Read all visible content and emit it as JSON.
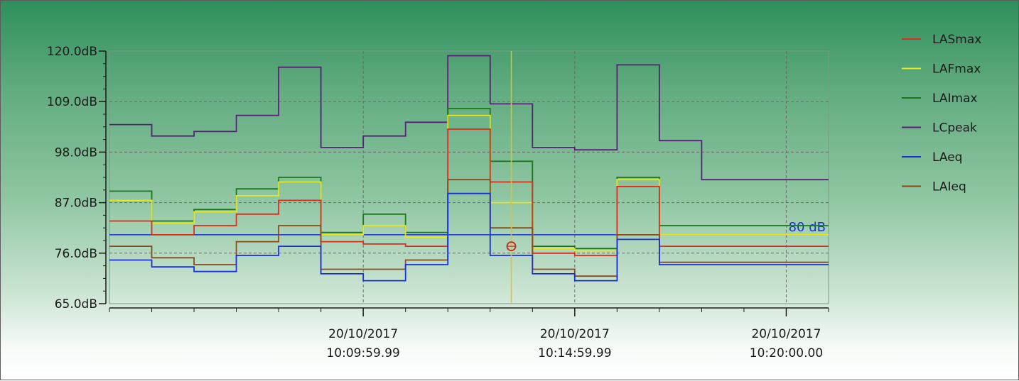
{
  "chart_data": {
    "type": "line",
    "step": true,
    "title": "",
    "xlabel": "",
    "ylabel": "",
    "ylim": [
      65,
      120
    ],
    "y_ticks": [
      {
        "value": 65,
        "label": "65.0dB"
      },
      {
        "value": 76,
        "label": "76.0dB"
      },
      {
        "value": 87,
        "label": "87.0dB"
      },
      {
        "value": 98,
        "label": "98.0dB"
      },
      {
        "value": 109,
        "label": "109.0dB"
      },
      {
        "value": 120,
        "label": "120.0dB"
      }
    ],
    "x_range": [
      "10:04:00",
      "10:21:00"
    ],
    "x_tick_labels": [
      {
        "date": "20/10/2017",
        "time": "10:09:59.99",
        "at": "10:10:00"
      },
      {
        "date": "20/10/2017",
        "time": "10:14:59.99",
        "at": "10:15:00"
      },
      {
        "date": "20/10/2017",
        "time": "10:20:00.00",
        "at": "10:20:00"
      }
    ],
    "x_minor_ticks": [
      "10:05:00",
      "10:06:00",
      "10:07:00",
      "10:08:00",
      "10:09:00",
      "10:11:00",
      "10:12:00",
      "10:13:00",
      "10:14:00",
      "10:16:00",
      "10:17:00",
      "10:18:00",
      "10:19:00",
      "10:21:00"
    ],
    "interval_starts": [
      "10:04:00",
      "10:05:00",
      "10:06:00",
      "10:07:00",
      "10:08:00",
      "10:09:00",
      "10:10:00",
      "10:11:00",
      "10:12:00",
      "10:13:00",
      "10:14:00",
      "10:15:00",
      "10:16:00",
      "10:17:00",
      "10:18:00",
      "10:19:00",
      "10:20:00"
    ],
    "interval_end": "10:21:00",
    "series": [
      {
        "name": "LCpeak",
        "color": "#5b1f7a",
        "values": [
          104,
          101.5,
          102.5,
          106,
          116.5,
          99,
          101.5,
          104.5,
          119,
          108.5,
          99,
          98.5,
          117,
          100.5,
          92,
          92,
          92
        ]
      },
      {
        "name": "LAImax",
        "color": "#1a7a1a",
        "values": [
          89.5,
          83,
          85.5,
          90,
          92.5,
          80.5,
          84.5,
          80.5,
          107.5,
          96,
          77.5,
          77,
          92.5,
          82,
          82,
          82,
          82
        ]
      },
      {
        "name": "LAFmax",
        "color": "#e6e61a",
        "values": [
          87.5,
          82.5,
          85,
          88.5,
          91.5,
          80,
          82,
          79.5,
          106,
          87,
          77,
          76.5,
          92,
          80,
          80,
          80,
          80
        ]
      },
      {
        "name": "LASmax",
        "color": "#e02a1a",
        "values": [
          83,
          80,
          82,
          84.5,
          87.5,
          78.5,
          78,
          77.5,
          103,
          91.5,
          76,
          75.5,
          90.5,
          77.5,
          77.5,
          77.5,
          77.5
        ]
      },
      {
        "name": "LAIeq",
        "color": "#8a4a1a",
        "values": [
          77.5,
          75,
          73.5,
          78.5,
          82,
          72.5,
          72.5,
          74.5,
          92,
          81.5,
          72.5,
          71,
          80,
          74,
          74,
          74,
          74
        ]
      },
      {
        "name": "LAeq",
        "color": "#1a2ee0",
        "values": [
          74.5,
          73,
          72,
          75.5,
          77.5,
          71.5,
          70,
          73.5,
          89,
          75.5,
          71.5,
          70,
          79,
          73.5,
          73.5,
          73.5,
          73.5
        ]
      }
    ],
    "legend_order": [
      "LASmax",
      "LAFmax",
      "LAImax",
      "LCpeak",
      "LAeq",
      "LAIeq"
    ],
    "legend_position": "right",
    "reference_line": {
      "value": 80,
      "label": "80 dB",
      "color": "#1a2ee0"
    },
    "cursor": {
      "x": "10:13:30",
      "value": 77.5,
      "color": "#e6c21a",
      "marker_color": "#d02020"
    },
    "grid": true
  }
}
